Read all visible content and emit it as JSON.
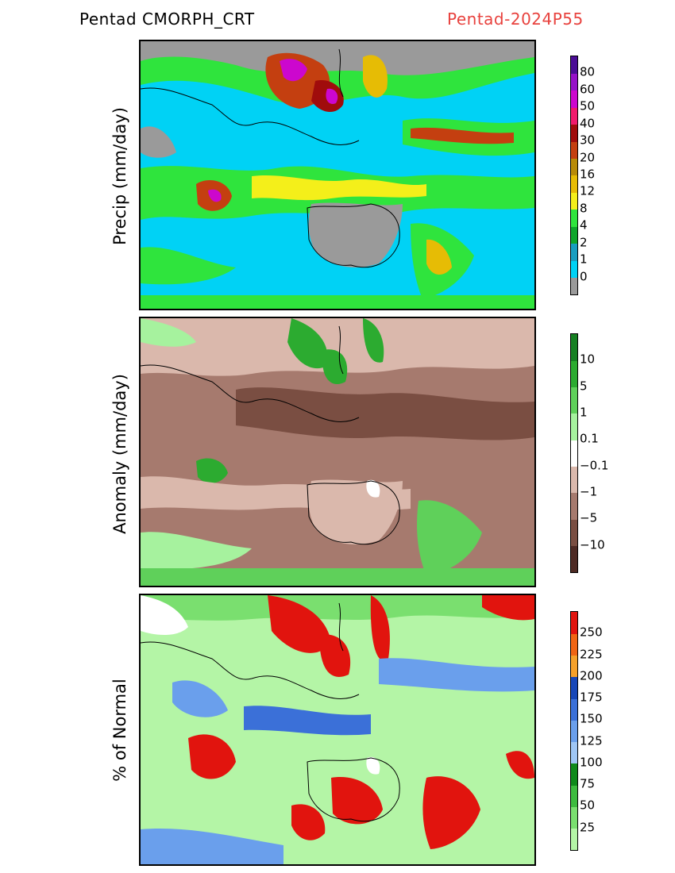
{
  "header": {
    "left": "Pentad CMORPH_CRT",
    "right": "Pentad-2024P55",
    "right_color": "#e8423e"
  },
  "panels": [
    {
      "id": "precip",
      "ylabel": "Precip (mm/day)",
      "colorbar": {
        "colors": [
          "#9a9a9a",
          "#00d2f5",
          "#199ec0",
          "#0fa62b",
          "#2fe43d",
          "#f4ef1a",
          "#e6bc05",
          "#b88b08",
          "#c43f10",
          "#a00c0c",
          "#f01a6c",
          "#cc07ce",
          "#9612c8",
          "#4b0d96"
        ],
        "labels": [
          "0",
          "1",
          "2",
          "4",
          "8",
          "12",
          "16",
          "20",
          "30",
          "40",
          "50",
          "60",
          "80"
        ]
      }
    },
    {
      "id": "anomaly",
      "ylabel": "Anomaly (mm/day)",
      "colorbar": {
        "colors": [
          "#4e2a24",
          "#7a4e42",
          "#a67a6e",
          "#dab8ac",
          "#ffffff",
          "#a6f29e",
          "#5fd05a",
          "#2cab30",
          "#168022"
        ],
        "labels": [
          "−10",
          "−5",
          "−1",
          "−0.1",
          "0.1",
          "1",
          "5",
          "10"
        ]
      }
    },
    {
      "id": "percent",
      "ylabel": "% of Normal",
      "colorbar": {
        "colors": [
          "#b4f5a6",
          "#7adf6f",
          "#3dbb3e",
          "#0f8a1a",
          "#9fc6f4",
          "#6a9fec",
          "#3b70d8",
          "#1747b8",
          "#f6a12a",
          "#f06514",
          "#e1140e"
        ],
        "labels": [
          "25",
          "50",
          "75",
          "100",
          "125",
          "150",
          "175",
          "200",
          "225",
          "250"
        ]
      }
    }
  ]
}
